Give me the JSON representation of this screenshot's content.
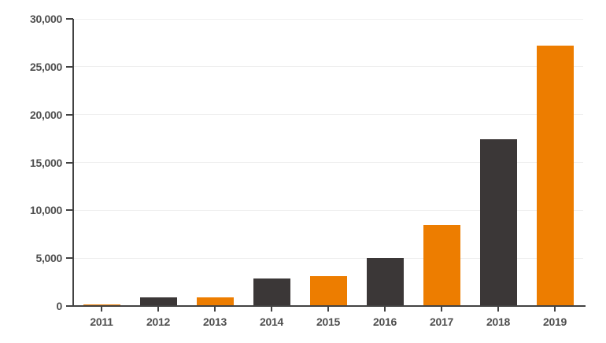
{
  "chart_data": {
    "type": "bar",
    "title": "",
    "xlabel": "",
    "ylabel": "",
    "categories": [
      "2011",
      "2012",
      "2013",
      "2014",
      "2015",
      "2016",
      "2017",
      "2018",
      "2019"
    ],
    "values": [
      150,
      900,
      900,
      2900,
      3100,
      5000,
      8500,
      17400,
      27200
    ],
    "bar_colors": [
      "#ED7D00",
      "#3B3737",
      "#ED7D00",
      "#3B3737",
      "#ED7D00",
      "#3B3737",
      "#ED7D00",
      "#3B3737",
      "#ED7D00"
    ],
    "ylim": [
      0,
      30000
    ],
    "yticks": [
      {
        "value": 0,
        "label": "0"
      },
      {
        "value": 5000,
        "label": "5,000"
      },
      {
        "value": 10000,
        "label": "10,000"
      },
      {
        "value": 15000,
        "label": "15,000"
      },
      {
        "value": 20000,
        "label": "20,000"
      },
      {
        "value": 25000,
        "label": "25,000"
      },
      {
        "value": 30000,
        "label": "30,000"
      }
    ],
    "grid": true,
    "legend": false
  },
  "colors": {
    "accent_orange": "#ED7D00",
    "bar_dark": "#3B3737",
    "axis": "#424242",
    "gridline": "#EFEFEF",
    "label_text": "#4F4F4F",
    "background": "#FFFFFF"
  }
}
